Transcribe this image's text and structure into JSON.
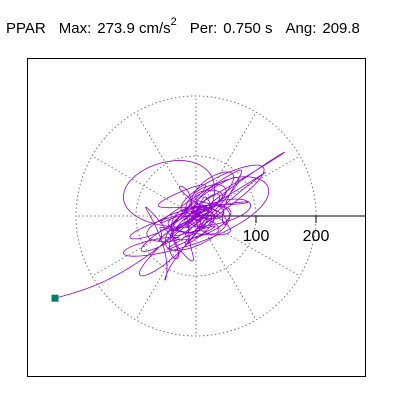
{
  "header": {
    "station": "PPAR",
    "max_label": "Max:",
    "max_value": "273.9",
    "max_unit": "cm/s",
    "max_unit_exp": "2",
    "per_label": "Per:",
    "per_value": "0.750 s",
    "ang_label": "Ang:",
    "ang_value": "209.8"
  },
  "chart_data": {
    "type": "scatter",
    "description_units": "acceleration cm/s^2",
    "x_tick_labels": [
      "100",
      "200"
    ],
    "x_ticks": [
      100,
      200
    ],
    "range_rings": [
      100,
      200
    ],
    "radial_spokes_deg": [
      0,
      30,
      60,
      90,
      120,
      150,
      180,
      210,
      240,
      270,
      300,
      330
    ],
    "trace_color": "#9400d3",
    "marker_color": "#00806a",
    "end_point": {
      "x": -235,
      "y": -137
    },
    "max_amplitude": 273.9,
    "azimuth_deg": 209.8,
    "grid": true
  }
}
